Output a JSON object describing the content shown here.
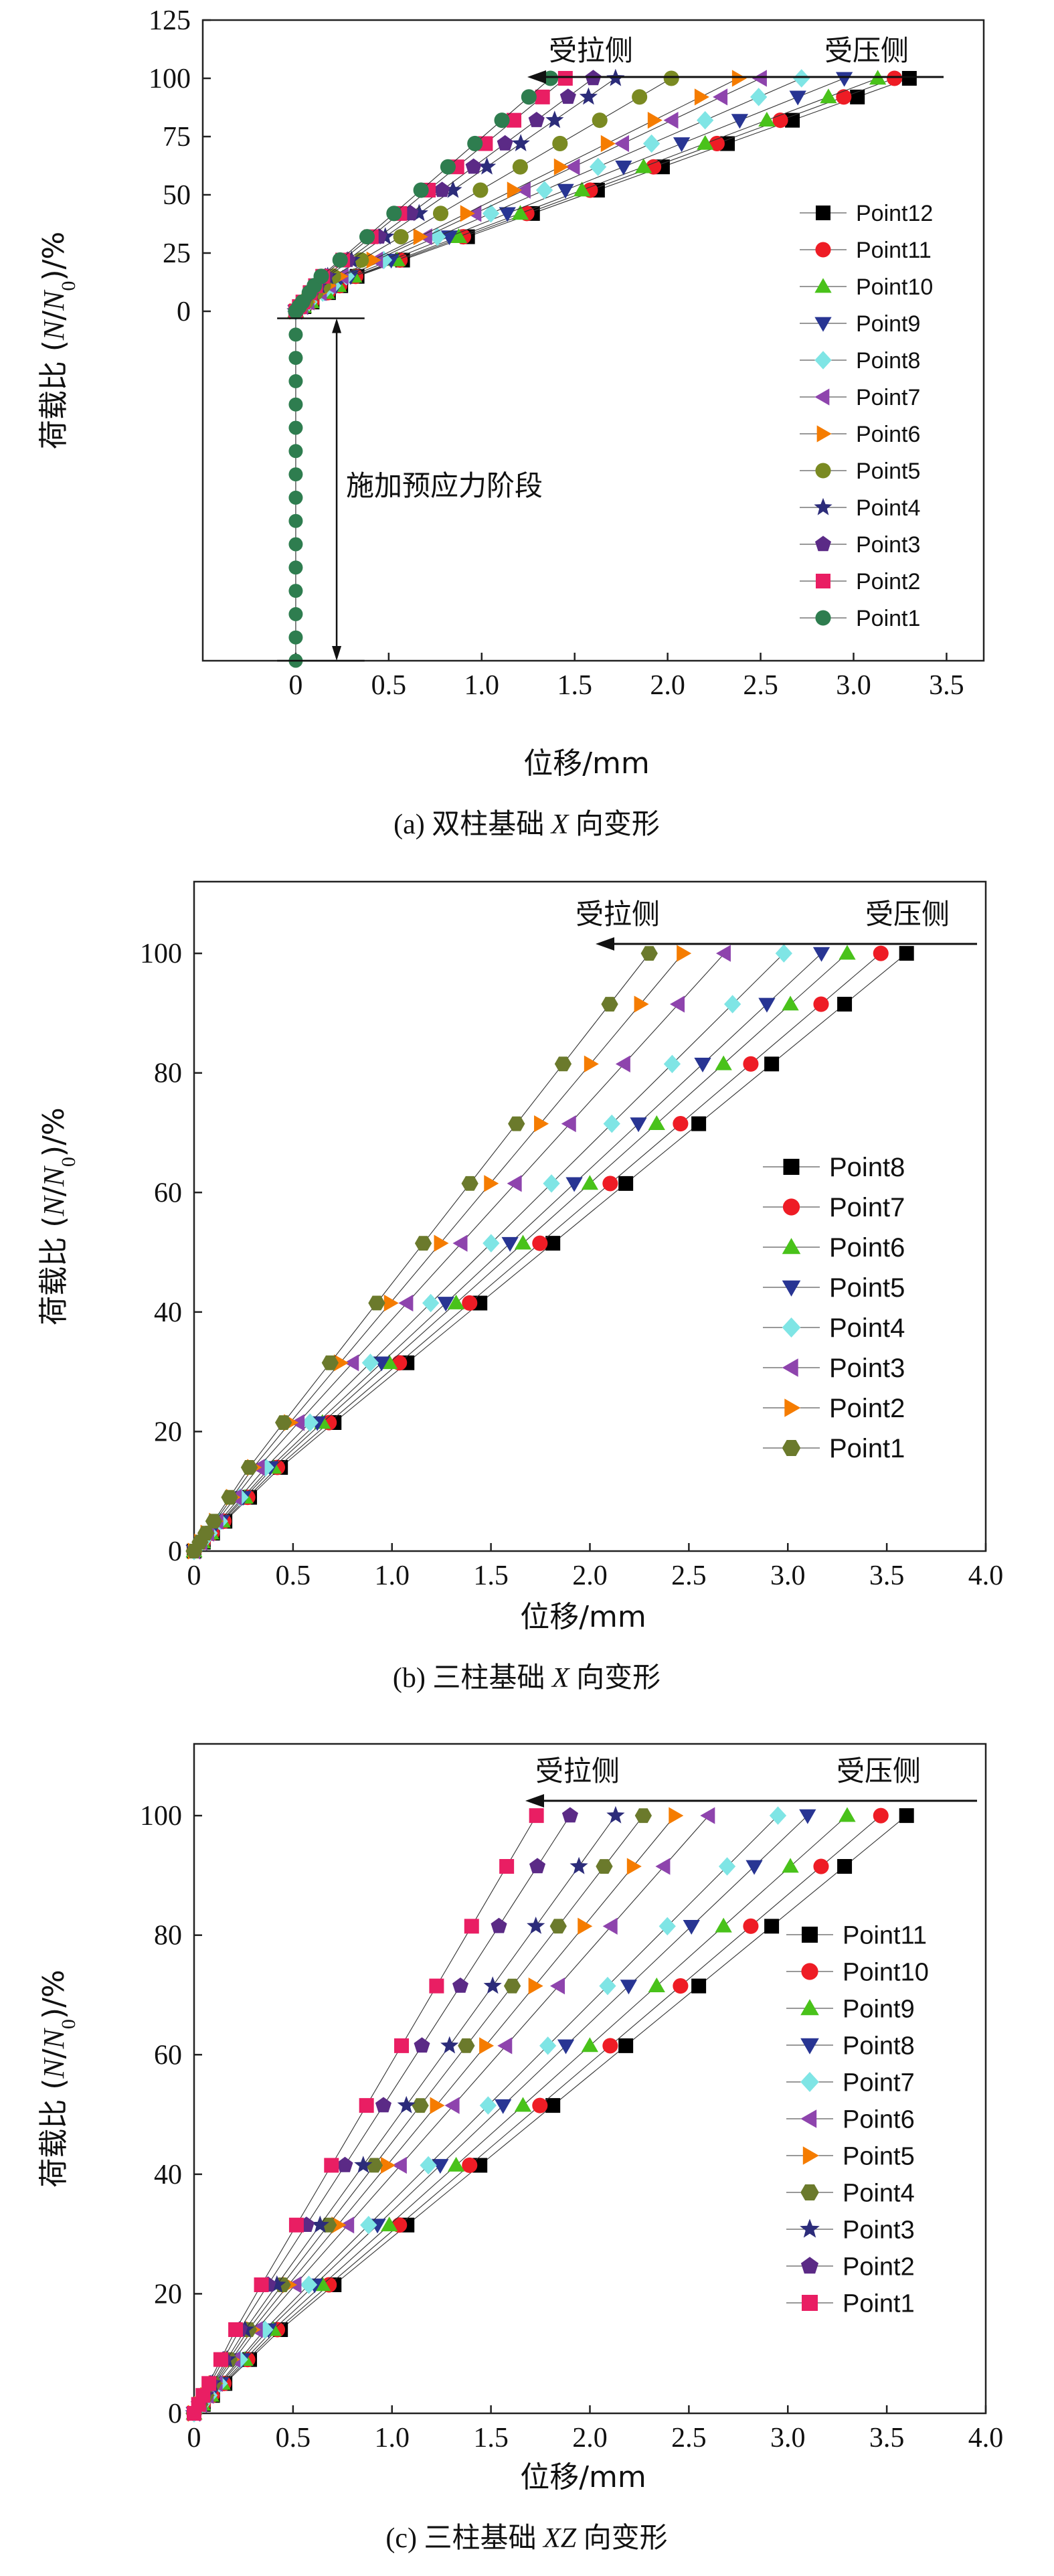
{
  "panels": [
    {
      "id": "a",
      "caption_prefix": "(a) 双柱基础 ",
      "caption_italic": "X",
      "caption_suffix": " 向变形",
      "ylabel_prefix": "荷载比 (",
      "ylabel_italic1": "N",
      "ylabel_mid": "/",
      "ylabel_italic2": "N",
      "ylabel_sub": "0",
      "ylabel_suffix": ")/%",
      "xlabel": "位移/mm",
      "annotation_tension": "受拉侧",
      "annotation_compression": "受压侧",
      "annotation_prestress": "施加预应力阶段"
    },
    {
      "id": "b",
      "caption_prefix": "(b) 三柱基础 ",
      "caption_italic": "X",
      "caption_suffix": " 向变形",
      "ylabel_prefix": "荷载比 (",
      "ylabel_italic1": "N",
      "ylabel_mid": "/",
      "ylabel_italic2": "N",
      "ylabel_sub": "0",
      "ylabel_suffix": ")/%",
      "xlabel": "位移/mm",
      "annotation_tension": "受拉侧",
      "annotation_compression": "受压侧"
    },
    {
      "id": "c",
      "caption_prefix": "(c) 三柱基础 ",
      "caption_italic": "XZ",
      "caption_suffix": " 向变形",
      "ylabel_prefix": "荷载比 (",
      "ylabel_italic1": "N",
      "ylabel_mid": "/",
      "ylabel_italic2": "N",
      "ylabel_sub": "0",
      "ylabel_suffix": ")/%",
      "xlabel": "位移/mm",
      "annotation_tension": "受拉侧",
      "annotation_compression": "受压侧"
    }
  ],
  "chart_data": [
    {
      "type": "line",
      "xlim": [
        -0.5,
        3.7
      ],
      "ylim": [
        -150,
        125
      ],
      "x_ticks": [
        0,
        0.5,
        1.0,
        1.5,
        2.0,
        2.5,
        3.0,
        3.5
      ],
      "x_tick_labels": [
        "0",
        "0.5",
        "1.0",
        "1.5",
        "2.0",
        "2.5",
        "3.0",
        "3.5"
      ],
      "y_ticks": [
        0,
        25,
        50,
        75,
        100,
        125
      ],
      "y_tick_labels": [
        "0",
        "25",
        "50",
        "75",
        "100",
        "125"
      ],
      "legend_position": "right",
      "prestress_range": [
        -150,
        -3
      ],
      "y_levels": [
        0,
        2,
        4,
        8,
        11,
        15,
        22,
        32,
        42,
        52,
        62,
        72,
        82,
        92,
        100
      ],
      "series": [
        {
          "name": "Point12",
          "color": "#000000",
          "marker": "square",
          "end_x": 3.3
        },
        {
          "name": "Point11",
          "color": "#ee1c25",
          "marker": "circle",
          "end_x": 3.22
        },
        {
          "name": "Point10",
          "color": "#49c21a",
          "marker": "triangle-up",
          "end_x": 3.13
        },
        {
          "name": "Point9",
          "color": "#283593",
          "marker": "triangle-down",
          "end_x": 2.95
        },
        {
          "name": "Point8",
          "color": "#7fe5e5",
          "marker": "diamond",
          "end_x": 2.72
        },
        {
          "name": "Point7",
          "color": "#8e44ad",
          "marker": "triangle-left",
          "end_x": 2.5
        },
        {
          "name": "Point6",
          "color": "#f57c00",
          "marker": "triangle-right",
          "end_x": 2.38
        },
        {
          "name": "Point5",
          "color": "#7a8a22",
          "marker": "circle",
          "end_x": 2.02
        },
        {
          "name": "Point4",
          "color": "#2c2c7a",
          "marker": "star",
          "end_x": 1.72
        },
        {
          "name": "Point3",
          "color": "#5b2a86",
          "marker": "pentagon",
          "end_x": 1.6
        },
        {
          "name": "Point2",
          "color": "#e91e63",
          "marker": "square",
          "end_x": 1.45
        },
        {
          "name": "Point1",
          "color": "#2e7d4f",
          "marker": "circle",
          "end_x": 1.37
        }
      ]
    },
    {
      "type": "line",
      "xlim": [
        0,
        4.0
      ],
      "ylim": [
        0,
        112
      ],
      "x_ticks": [
        0,
        0.5,
        1.0,
        1.5,
        2.0,
        2.5,
        3.0,
        3.5,
        4.0
      ],
      "x_tick_labels": [
        "0",
        "0.5",
        "1.0",
        "1.5",
        "2.0",
        "2.5",
        "3.0",
        "3.5",
        "4.0"
      ],
      "y_ticks": [
        0,
        20,
        40,
        60,
        80,
        100
      ],
      "y_tick_labels": [
        "0",
        "20",
        "40",
        "60",
        "80",
        "100"
      ],
      "legend_position": "right",
      "y_levels": [
        0,
        1.5,
        3,
        5,
        9,
        14,
        21.5,
        31.5,
        41.5,
        51.5,
        61.5,
        71.5,
        81.5,
        91.5,
        100
      ],
      "series": [
        {
          "name": "Point8",
          "color": "#000000",
          "marker": "square",
          "end_x": 3.6
        },
        {
          "name": "Point7",
          "color": "#ee1c25",
          "marker": "circle",
          "end_x": 3.47
        },
        {
          "name": "Point6",
          "color": "#49c21a",
          "marker": "triangle-up",
          "end_x": 3.3
        },
        {
          "name": "Point5",
          "color": "#283593",
          "marker": "triangle-down",
          "end_x": 3.17
        },
        {
          "name": "Point4",
          "color": "#7fe5e5",
          "marker": "diamond",
          "end_x": 2.98
        },
        {
          "name": "Point3",
          "color": "#8e44ad",
          "marker": "triangle-left",
          "end_x": 2.68
        },
        {
          "name": "Point2",
          "color": "#f57c00",
          "marker": "triangle-right",
          "end_x": 2.47
        },
        {
          "name": "Point1",
          "color": "#6b7a2c",
          "marker": "hexagon",
          "end_x": 2.3
        }
      ]
    },
    {
      "type": "line",
      "xlim": [
        0,
        4.0
      ],
      "ylim": [
        0,
        112
      ],
      "x_ticks": [
        0,
        0.5,
        1.0,
        1.5,
        2.0,
        2.5,
        3.0,
        3.5,
        4.0
      ],
      "x_tick_labels": [
        "0",
        "0.5",
        "1.0",
        "1.5",
        "2.0",
        "2.5",
        "3.0",
        "3.5",
        "4.0"
      ],
      "y_ticks": [
        0,
        20,
        40,
        60,
        80,
        100
      ],
      "y_tick_labels": [
        "0",
        "20",
        "40",
        "60",
        "80",
        "100"
      ],
      "legend_position": "right",
      "y_levels": [
        0,
        1.5,
        3,
        5,
        9,
        14,
        21.5,
        31.5,
        41.5,
        51.5,
        61.5,
        71.5,
        81.5,
        91.5,
        100
      ],
      "series": [
        {
          "name": "Point11",
          "color": "#000000",
          "marker": "square",
          "end_x": 3.6
        },
        {
          "name": "Point10",
          "color": "#ee1c25",
          "marker": "circle",
          "end_x": 3.47
        },
        {
          "name": "Point9",
          "color": "#49c21a",
          "marker": "triangle-up",
          "end_x": 3.3
        },
        {
          "name": "Point8",
          "color": "#283593",
          "marker": "triangle-down",
          "end_x": 3.1
        },
        {
          "name": "Point7",
          "color": "#7fe5e5",
          "marker": "diamond",
          "end_x": 2.95
        },
        {
          "name": "Point6",
          "color": "#8e44ad",
          "marker": "triangle-left",
          "end_x": 2.6
        },
        {
          "name": "Point5",
          "color": "#f57c00",
          "marker": "triangle-right",
          "end_x": 2.43
        },
        {
          "name": "Point4",
          "color": "#6b7a2c",
          "marker": "hexagon",
          "end_x": 2.27
        },
        {
          "name": "Point3",
          "color": "#2c2c7a",
          "marker": "star",
          "end_x": 2.13
        },
        {
          "name": "Point2",
          "color": "#5b2a86",
          "marker": "pentagon",
          "end_x": 1.9
        },
        {
          "name": "Point1",
          "color": "#e91e63",
          "marker": "square",
          "end_x": 1.73
        }
      ]
    }
  ]
}
